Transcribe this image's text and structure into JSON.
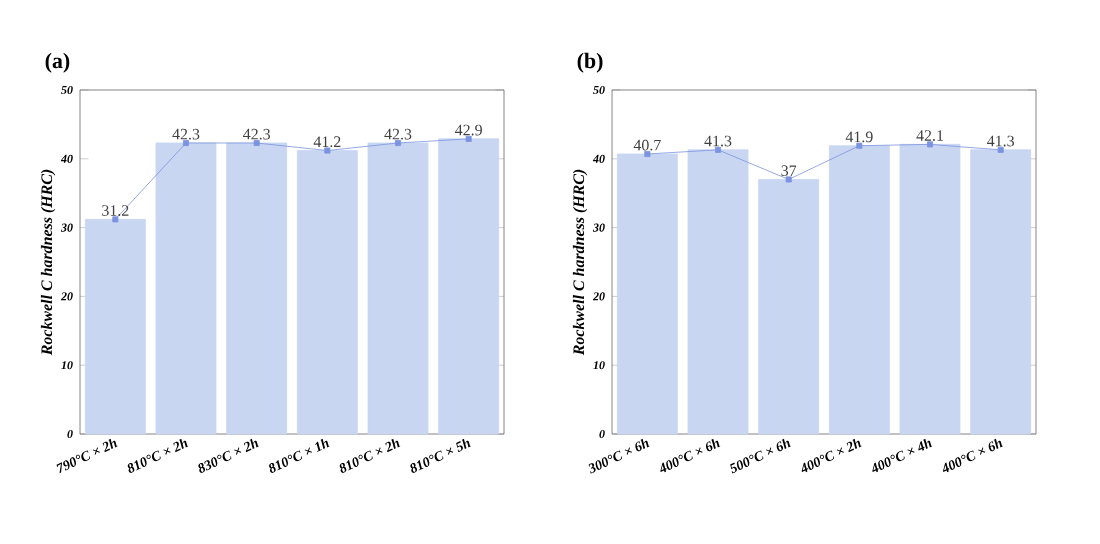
{
  "chart_data": [
    {
      "type": "bar",
      "title": "(a)",
      "ylabel": "Rockwell C hardness (HRC)",
      "categories": [
        "790°C × 2h",
        "810°C × 2h",
        "830°C × 2h",
        "810°C × 1h",
        "810°C × 2h",
        "810°C × 5h"
      ],
      "series": [
        {
          "color": "#c8d6f2",
          "values": [
            31.2,
            42.3,
            42.3,
            41.2,
            42.3,
            42.9
          ]
        },
        {
          "type": "line",
          "color": "#7b93e0",
          "marker": "square",
          "values": [
            31.2,
            42.3,
            42.3,
            41.2,
            42.3,
            42.9
          ],
          "value_labels": [
            "31.2",
            "42.3",
            "42.3",
            "41.2",
            "42.3",
            "42.9"
          ]
        }
      ],
      "ylim": [
        0,
        50
      ],
      "yticks": [
        0,
        10,
        20,
        30,
        40,
        50
      ]
    },
    {
      "type": "bar",
      "title": "(b)",
      "ylabel": "Rockwell C hardness (HRC)",
      "categories": [
        "300°C × 6h",
        "400°C × 6h",
        "500°C × 6h",
        "400°C × 2h",
        "400°C × 4h",
        "400°C × 6h"
      ],
      "series": [
        {
          "color": "#c8d6f2",
          "values": [
            40.7,
            41.3,
            37,
            41.9,
            42.1,
            41.3
          ]
        },
        {
          "type": "line",
          "color": "#7b93e0",
          "marker": "square",
          "values": [
            40.7,
            41.3,
            37,
            41.9,
            42.1,
            41.3
          ],
          "value_labels": [
            "40.7",
            "41.3",
            "37",
            "41.9",
            "42.1",
            "41.3"
          ]
        }
      ],
      "ylim": [
        0,
        50
      ],
      "yticks": [
        0,
        10,
        20,
        30,
        40,
        50
      ]
    }
  ]
}
